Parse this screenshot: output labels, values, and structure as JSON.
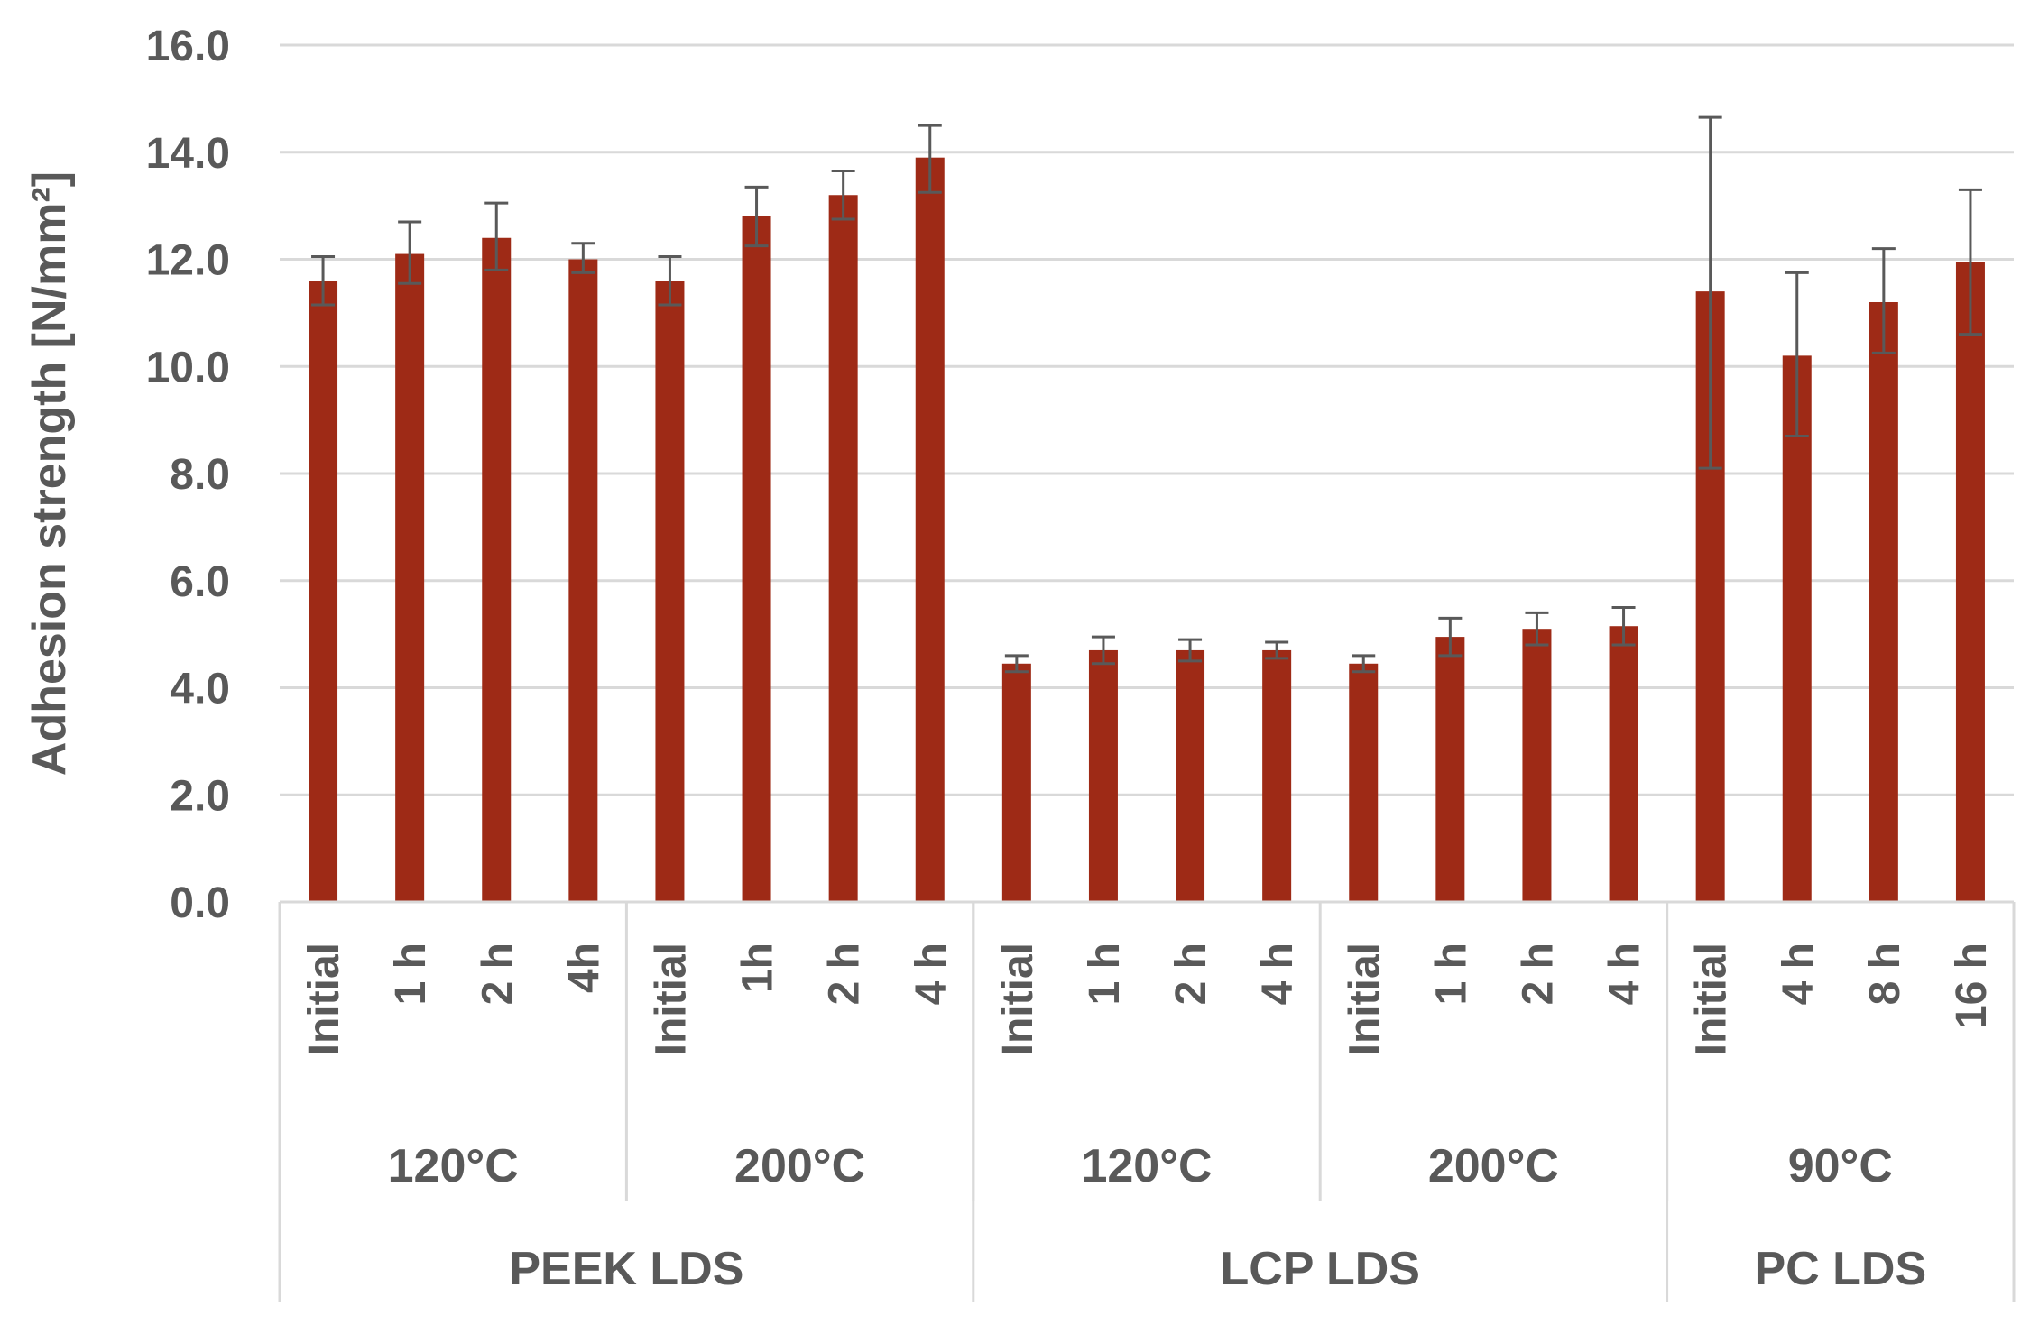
{
  "chart_data": {
    "type": "bar",
    "title": "",
    "ylabel": "Adhesion strength [N/mm²]",
    "xlabel": "",
    "ylim": [
      0,
      16
    ],
    "yticks": [
      "0.0",
      "2.0",
      "4.0",
      "6.0",
      "8.0",
      "10.0",
      "12.0",
      "14.0",
      "16.0"
    ],
    "grid": true,
    "legend": "none",
    "bar_color": "#9E2A16",
    "errorbar_color": "#595959",
    "gridline_color": "#D9D9D9",
    "categories": [
      "Initial",
      "1 h",
      "2 h",
      "4h",
      "Initial",
      "1h",
      "2 h",
      "4 h",
      "Initial",
      "1 h",
      "2 h",
      "4 h",
      "Initial",
      "1 h",
      "2 h",
      "4 h",
      "Initial",
      "4 h",
      "8 h",
      "16 h"
    ],
    "values": [
      11.6,
      12.1,
      12.4,
      12.0,
      11.6,
      12.8,
      13.2,
      13.9,
      4.45,
      4.7,
      4.7,
      4.7,
      4.45,
      4.95,
      5.1,
      5.15,
      11.4,
      10.2,
      11.2,
      11.95
    ],
    "error_low": [
      11.15,
      11.55,
      11.8,
      11.75,
      11.15,
      12.25,
      12.75,
      13.25,
      4.3,
      4.45,
      4.5,
      4.55,
      4.3,
      4.6,
      4.8,
      4.8,
      8.1,
      8.7,
      10.25,
      10.6
    ],
    "error_high": [
      12.05,
      12.7,
      13.05,
      12.3,
      12.05,
      13.35,
      13.65,
      14.5,
      4.6,
      4.95,
      4.9,
      4.85,
      4.6,
      5.3,
      5.4,
      5.5,
      14.65,
      11.75,
      12.2,
      13.3
    ],
    "temperature_groups": [
      {
        "label": "120°C",
        "count": 4
      },
      {
        "label": "200°C",
        "count": 4
      },
      {
        "label": "120°C",
        "count": 4
      },
      {
        "label": "200°C",
        "count": 4
      },
      {
        "label": "90°C",
        "count": 4
      }
    ],
    "material_groups": [
      {
        "label": "PEEK LDS",
        "count": 8
      },
      {
        "label": "LCP LDS",
        "count": 8
      },
      {
        "label": "PC LDS",
        "count": 4
      }
    ]
  }
}
